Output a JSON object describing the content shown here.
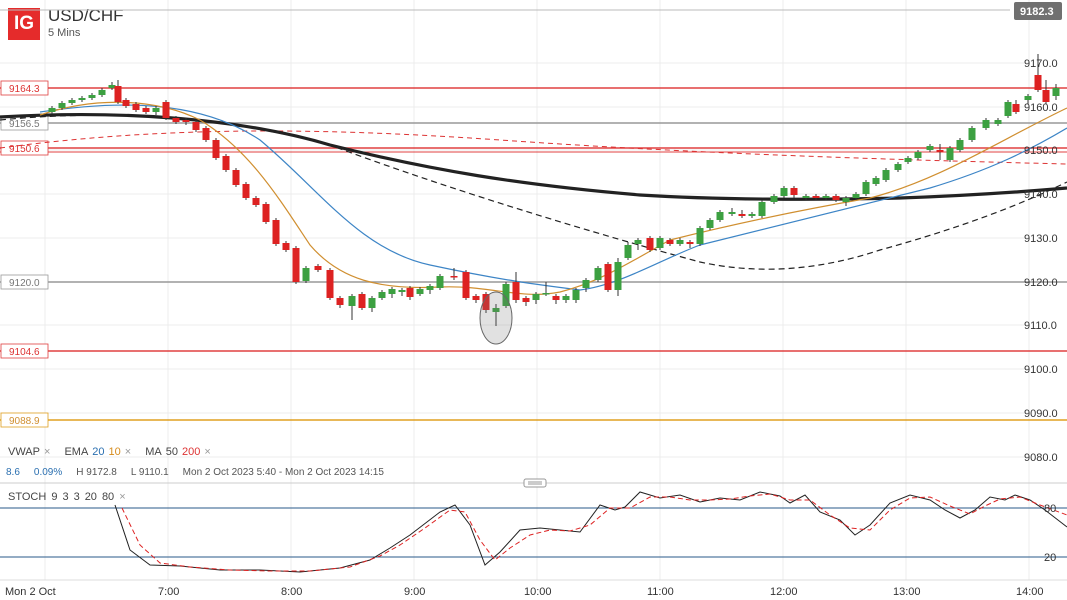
{
  "header": {
    "logo": "IG",
    "symbol": "USD/CHF",
    "interval": "5 Mins"
  },
  "price_axis": {
    "ticks": [
      "9170.0",
      "9160.0",
      "9150.0",
      "9140.0",
      "9130.0",
      "9120.0",
      "9110.0",
      "9100.0",
      "9090.0",
      "9080.0"
    ],
    "current": "9182.3"
  },
  "levels": {
    "l1": "9164.3",
    "l2": "9156.5",
    "l3": "9150.6",
    "l4": "9120.0",
    "l5": "9104.6",
    "l6": "9088.9"
  },
  "time_axis": [
    "Mon 2 Oct",
    "7:00",
    "8:00",
    "9:00",
    "10:00",
    "11:00",
    "12:00",
    "13:00",
    "14:00"
  ],
  "indicators": {
    "vwap": "VWAP",
    "ema": "EMA",
    "ema1": "20",
    "ema2": "10",
    "ma": "MA",
    "ma1": "50",
    "ma2": "200",
    "close": "×"
  },
  "info": {
    "v1": "8.6",
    "v2": "0.09%",
    "high": "H 9172.8",
    "low": "L 9110.1",
    "range": "Mon 2 Oct 2023 5:40 - Mon 2 Oct 2023 14:15"
  },
  "stoch": {
    "label": "STOCH",
    "p1": "9",
    "p2": "3",
    "p3": "3",
    "p4": "20",
    "p5": "80",
    "close": "×",
    "t80": "80",
    "t20": "20"
  },
  "colors": {
    "up": "#3ca041",
    "down": "#dd2222",
    "ema20": "#3d85c6",
    "ema10": "#d08f30",
    "ma50": "#222222",
    "ma200": "#333333",
    "red_level": "#e04040",
    "gray_level": "#999999",
    "orange_level": "#e0a020",
    "stoch_k": "#222222",
    "stoch_d": "#dd2222"
  }
}
